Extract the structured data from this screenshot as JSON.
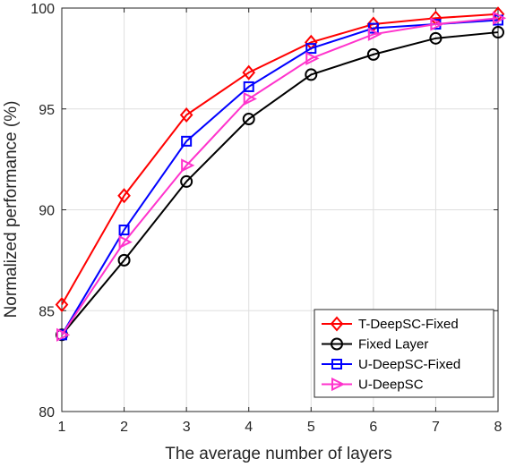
{
  "chart_data": {
    "type": "line",
    "title": "",
    "xlabel": "The average number of layers",
    "ylabel": "Normalized performance (%)",
    "xlim": [
      1,
      8
    ],
    "ylim": [
      80,
      100
    ],
    "xticks": [
      "1",
      "2",
      "3",
      "4",
      "5",
      "6",
      "7",
      "8"
    ],
    "yticks": [
      "80",
      "85",
      "90",
      "95",
      "100"
    ],
    "grid": true,
    "legend_position": "bottom-right",
    "x": [
      1,
      2,
      3,
      4,
      5,
      6,
      7,
      8
    ],
    "series": [
      {
        "name": "T-DeepSC-Fixed",
        "color": "#ff0000",
        "marker": "diamond",
        "values": [
          85.3,
          90.7,
          94.7,
          96.8,
          98.3,
          99.2,
          99.5,
          99.7
        ]
      },
      {
        "name": "Fixed Layer",
        "color": "#000000",
        "marker": "circle",
        "values": [
          83.8,
          87.5,
          91.4,
          94.5,
          96.7,
          97.7,
          98.5,
          98.8
        ]
      },
      {
        "name": "U-DeepSC-Fixed",
        "color": "#0000ff",
        "marker": "square",
        "values": [
          83.8,
          89.0,
          93.4,
          96.1,
          98.0,
          99.0,
          99.2,
          99.4
        ]
      },
      {
        "name": "U-DeepSC",
        "color": "#ff33cc",
        "marker": "triangle-right",
        "values": [
          83.8,
          88.4,
          92.2,
          95.5,
          97.5,
          98.7,
          99.2,
          99.5
        ]
      }
    ]
  }
}
